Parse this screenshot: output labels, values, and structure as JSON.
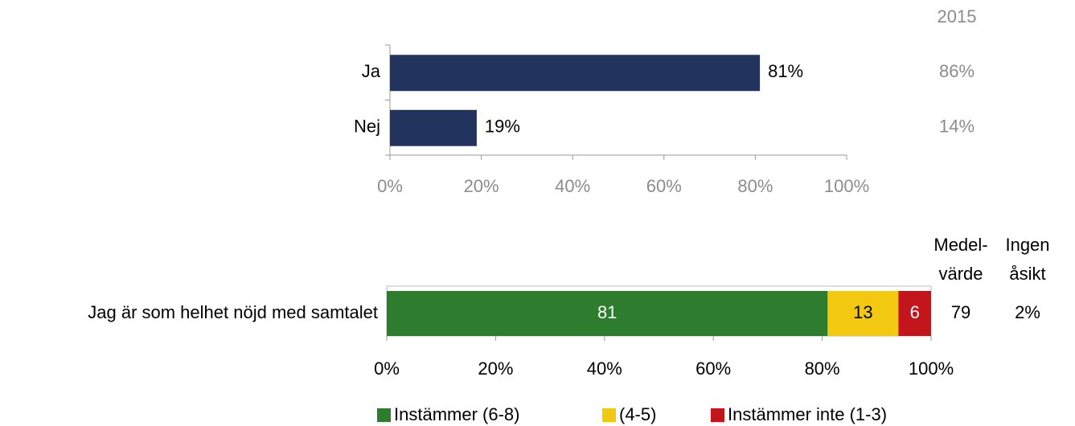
{
  "chart_data": [
    {
      "type": "hbar",
      "categories": [
        "Ja",
        "Nej"
      ],
      "values": [
        81,
        19
      ],
      "value_labels": [
        "81%",
        "19%"
      ],
      "color": "#22335e",
      "xlim": [
        0,
        100
      ],
      "xticks": [
        {
          "value": 0,
          "label": "0%"
        },
        {
          "value": 20,
          "label": "20%"
        },
        {
          "value": 40,
          "label": "40%"
        },
        {
          "value": 60,
          "label": "60%"
        },
        {
          "value": 80,
          "label": "80%"
        },
        {
          "value": 100,
          "label": "100%"
        }
      ],
      "comparison": {
        "name": "2015",
        "values": [
          86,
          14
        ],
        "value_labels": [
          "86%",
          "14%"
        ]
      }
    },
    {
      "type": "stacked_hbar",
      "categories": [
        "Jag är som helhet nöjd med samtalet"
      ],
      "series": [
        {
          "name": "Instämmer (6-8)",
          "color": "#2e7d2e",
          "values": [
            81
          ]
        },
        {
          "name": "(4-5)",
          "color": "#f2c811",
          "values": [
            13
          ]
        },
        {
          "name": "Instämmer inte (1-3)",
          "color": "#c3161c",
          "values": [
            6
          ]
        }
      ],
      "xlim": [
        0,
        100
      ],
      "xticks": [
        {
          "value": 0,
          "label": "0%"
        },
        {
          "value": 20,
          "label": "20%"
        },
        {
          "value": 40,
          "label": "40%"
        },
        {
          "value": 60,
          "label": "60%"
        },
        {
          "value": 80,
          "label": "80%"
        },
        {
          "value": 100,
          "label": "100%"
        }
      ],
      "columns": [
        {
          "header": [
            "Medel-",
            "värde"
          ],
          "values": [
            79
          ]
        },
        {
          "header": [
            "Ingen",
            "åsikt"
          ],
          "values": [
            2
          ],
          "value_labels": [
            "2%"
          ]
        }
      ],
      "legend": "bottom"
    }
  ]
}
